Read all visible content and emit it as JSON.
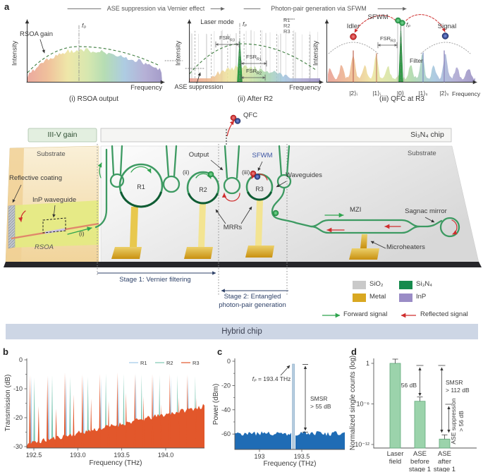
{
  "panel_letters": {
    "a": "a",
    "b": "b",
    "c": "c",
    "d": "d"
  },
  "flows": {
    "left": "ASE suppression via Vernier effect",
    "right": "Photon-pair generation via SFWM"
  },
  "insets": {
    "i": {
      "ylabel": "Intensity",
      "xlabel": "Frequency",
      "caption": "(i) RSOA output",
      "gain_label": "RSOA gain",
      "f0": "f₀"
    },
    "ii": {
      "ylabel": "Intensity",
      "xlabel": "Frequency",
      "caption": "(ii) After R2",
      "laser_mode": "Laser mode",
      "fp": "fₚ",
      "ase": "ASE suppression",
      "legend": [
        "R1",
        "R2",
        "R3"
      ],
      "fsr_top": {
        "base": "FSR",
        "sub": "R3"
      },
      "fsr_mid": {
        "base": "FSR",
        "sub": "R1"
      },
      "fsr_bot": {
        "base": "FSR",
        "sub": "R2"
      }
    },
    "iii": {
      "ylabel": "Intensity",
      "xlabel": "Frequency",
      "caption": "(iii) QFC at R3",
      "sfwm": "SFWM",
      "idler": "Idler",
      "signal": "Signal",
      "fp": "fₚ",
      "filter": "Filter",
      "fsr": {
        "base": "FSR",
        "sub": "R3"
      },
      "states": [
        "|2⟩ᵢ",
        "|1⟩ᵢ",
        "|0⟩",
        "|1⟩ₛ",
        "|2⟩ₛ"
      ]
    }
  },
  "schematic": {
    "iiiv_gain": "III-V gain",
    "si3n4_chip": "Si₃N₄ chip",
    "substrate_left": "Substrate",
    "substrate_right": "Substrate",
    "reflective_coating": "Reflective coating",
    "inp_waveguide": "InP waveguide",
    "rsoa": "RSOA",
    "r1": "R1",
    "r2": "R2",
    "r3": "R3",
    "tag_i": "(i)",
    "tag_ii": "(ii)",
    "tag_iii": "(iii)",
    "output": "Output",
    "qfc": "QFC",
    "sfwm": "SFWM",
    "waveguides": "Waveguides",
    "mrrs": "MRRs",
    "mzi": "MZI",
    "sagnac": "Sagnac mirror",
    "microheaters": "Microheaters",
    "stage1": "Stage 1: Vernier filtering",
    "stage2_line1": "Stage 2: Entangled",
    "stage2_line2": "photon-pair generation",
    "banner": "Hybrid chip",
    "legend": {
      "sio2": "SiO₂",
      "si3n4": "Si₃N₄",
      "metal": "Metal",
      "inp": "InP",
      "forward": "Forward signal",
      "reflected": "Reflected signal"
    },
    "colors": {
      "sio2": "#c9c9c9",
      "si3n4": "#168a4d",
      "metal": "#d9a821",
      "inp": "#9a8cc6",
      "waveguide": "#3d9a62",
      "forward": "#2fa44e",
      "reflected": "#cf2e2e"
    }
  },
  "chart_data": [
    {
      "id": "b",
      "type": "line",
      "xlabel": "Frequency (THz)",
      "ylabel": "Transmission (dB)",
      "xticks": [
        192.5,
        193.0,
        193.5,
        194.0
      ],
      "yticks": [
        0,
        -10,
        -20,
        -30
      ],
      "xlim": [
        192.42,
        194.44
      ],
      "ylim": [
        -31,
        0
      ],
      "legend": [
        "R1",
        "R2",
        "R3"
      ],
      "series": [
        {
          "name": "R1",
          "color": "#9fc7e8",
          "comb_start_thz": 192.47,
          "comb_fsr_thz": 0.1985,
          "peak_db": -5.5,
          "base_db": -30.5
        },
        {
          "name": "R2",
          "color": "#7ec8b4",
          "comb_start_thz": 192.505,
          "comb_fsr_thz": 0.2035,
          "peak_db": -5.5,
          "base_db": -30.5
        },
        {
          "name": "R3",
          "color": "#e2572b",
          "comb_start_thz": 192.455,
          "comb_fsr_thz": 0.0995,
          "peak_db": -5.0,
          "base_db": -30.5,
          "noise_floor_db": [
            -29.5,
            -16
          ]
        }
      ],
      "description": "Vernier transmission spectra of microrings R1-R3; R3 background rises from about -29 dB at 192.4 THz to about -16 dB at 194.4 THz; resonance peaks reach about -5 dB"
    },
    {
      "id": "c",
      "type": "line",
      "xlabel": "Frequency (THz)",
      "ylabel": "Power (dBm)",
      "xticks": [
        193,
        193.5
      ],
      "yticks": [
        0,
        -20,
        -40,
        -60
      ],
      "xlim": [
        192.71,
        193.99
      ],
      "ylim": [
        -72,
        2
      ],
      "peak": {
        "freq_thz": 193.4,
        "power_dbm": -3
      },
      "noise_floor_dbm": -62,
      "noise_color": "#1f6cb5",
      "annotations": {
        "fp_italic": "fₚ",
        "fp_rest": " = 193.4 THz",
        "smsr": [
          "SMSR",
          "> 55 dB"
        ]
      }
    },
    {
      "id": "d",
      "type": "bar",
      "log": true,
      "ylabel": "Normalized single counts (log)",
      "categories": [
        [
          "Laser",
          "field"
        ],
        [
          "ASE",
          "before",
          "stage 1"
        ],
        [
          "ASE",
          "after",
          "stage 1"
        ]
      ],
      "values": [
        1,
        2.5e-06,
        6.3e-12
      ],
      "ytick_labels": [
        "1",
        "10⁻⁶",
        "10⁻¹²"
      ],
      "bar_color": "#9bd3ab",
      "bar_edge": "#63aa7c",
      "annotations": {
        "gap": "56 dB",
        "smsr": [
          "SMSR",
          "> 112 dB"
        ],
        "ase": [
          "ASE suppression",
          "> 56 dB"
        ]
      }
    }
  ]
}
